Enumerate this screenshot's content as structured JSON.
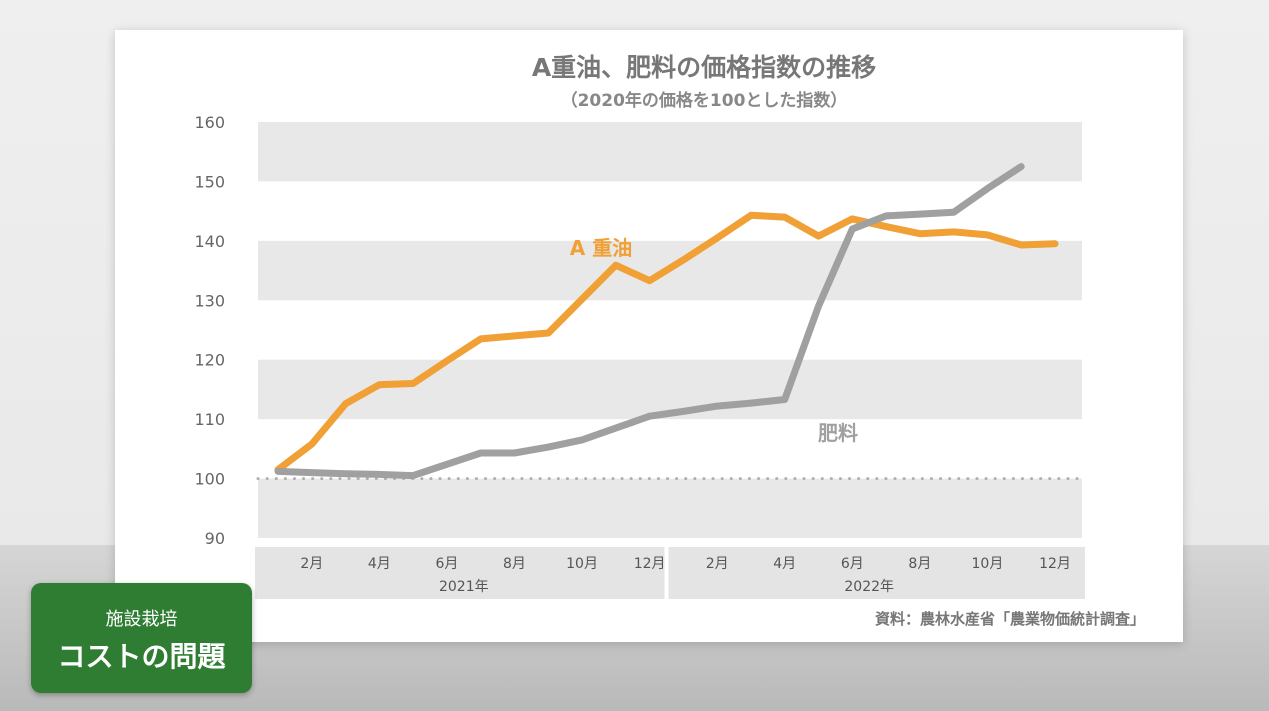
{
  "overlay": {
    "line1": "施設栽培",
    "line2": "コストの問題",
    "color": "#2e7d32"
  },
  "chart_data": {
    "type": "line",
    "title": "A重油、肥料の価格指数の推移",
    "subtitle": "（2020年の価格を100とした指数）",
    "source": "資料：農林水産省「農業物価統計調査」",
    "ylim": [
      90,
      160
    ],
    "yticks": [
      "90",
      "100",
      "110",
      "120",
      "130",
      "140",
      "150",
      "160"
    ],
    "baseline": 100,
    "x": [
      "2021-01",
      "2021-02",
      "2021-03",
      "2021-04",
      "2021-05",
      "2021-06",
      "2021-07",
      "2021-08",
      "2021-09",
      "2021-10",
      "2021-11",
      "2021-12",
      "2022-01",
      "2022-02",
      "2022-03",
      "2022-04",
      "2022-05",
      "2022-06",
      "2022-07",
      "2022-08",
      "2022-09",
      "2022-10",
      "2022-11",
      "2022-12"
    ],
    "month_labels": [
      "2月",
      "4月",
      "6月",
      "8月",
      "10月",
      "12月",
      "2月",
      "4月",
      "6月",
      "8月",
      "10月",
      "12月"
    ],
    "year_labels": [
      "2021年",
      "2022年"
    ],
    "series": [
      {
        "name": "A 重油",
        "color": "#f0a035",
        "values": [
          101.5,
          105.8,
          112.6,
          115.8,
          116.0,
          119.8,
          123.5,
          124.0,
          124.5,
          130.2,
          135.9,
          133.3,
          136.8,
          140.5,
          144.3,
          144.0,
          140.8,
          143.7,
          142.4,
          141.2,
          141.5,
          141.0,
          139.3,
          139.5
        ]
      },
      {
        "name": "肥料",
        "color": "#a0a0a0",
        "values": [
          101.2,
          101.0,
          100.8,
          100.7,
          100.5,
          102.4,
          104.3,
          104.3,
          105.3,
          106.5,
          108.5,
          110.5,
          111.3,
          112.2,
          112.7,
          113.3,
          129.0,
          142.0,
          144.2,
          144.5,
          144.8,
          148.8,
          152.5,
          null
        ]
      }
    ]
  }
}
